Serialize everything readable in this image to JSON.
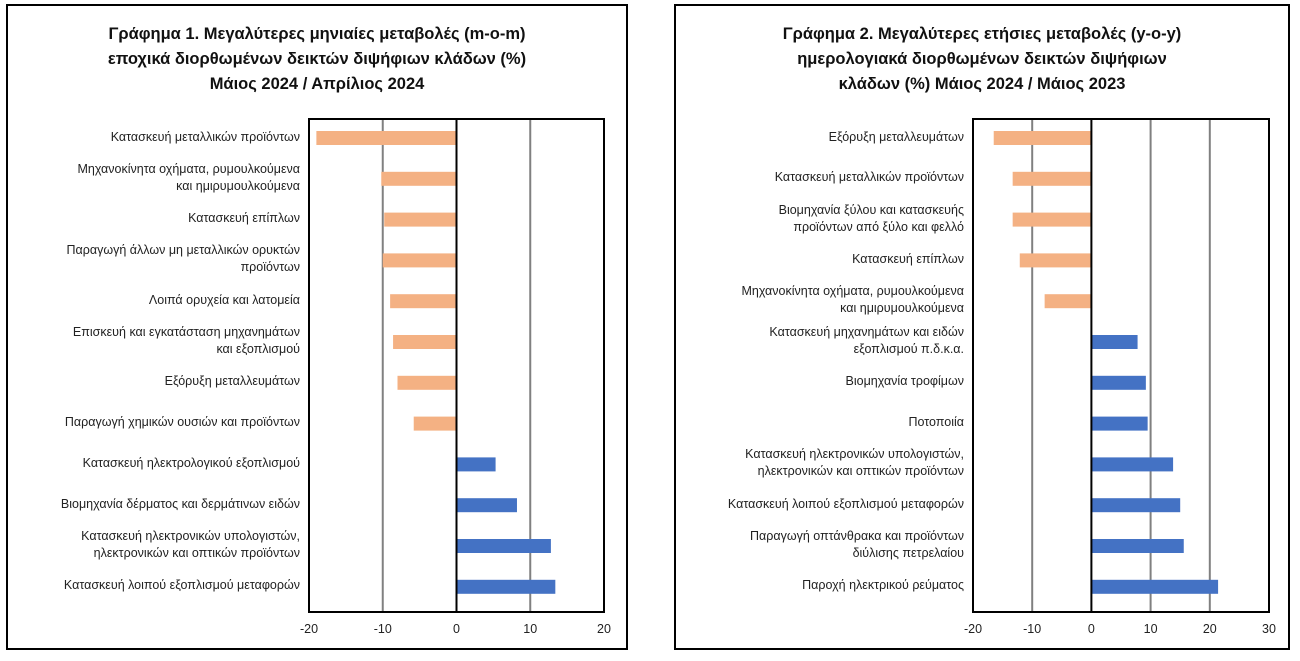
{
  "chart_data": [
    {
      "type": "bar",
      "orientation": "horizontal",
      "title": "Γράφημα 1. Μεγαλύτερες μηνιαίες μεταβολές (m-o-m)\nεποχικά διορθωμένων δεικτών διψήφιων κλάδων (%)\nΜάιος 2024 / Απρίλιος  2024",
      "categories": [
        "Κατασκευή μεταλλικών προϊόντων",
        "Μηχανοκίνητα οχήματα, ρυμουλκούμενα\nκαι ημιρυμουλκούμενα",
        "Κατασκευή επίπλων",
        "Παραγωγή άλλων μη μεταλλικών ορυκτών\nπροϊόντων",
        "Λοιπά ορυχεία και λατομεία",
        "Επισκευή και εγκατάσταση μηχανημάτων\nκαι εξοπλισμού",
        "Εξόρυξη μεταλλευμάτων",
        "Παραγωγή χημικών ουσιών και προϊόντων",
        "Κατασκευή ηλεκτρολογικού εξοπλισμού",
        "Βιομηχανία δέρματος και δερμάτινων ειδών",
        "Κατασκευή ηλεκτρονικών υπολογιστών,\nηλεκτρονικών και οπτικών προϊόντων",
        "Κατασκευή λοιπού εξοπλισμού μεταφορών"
      ],
      "values": [
        -19.0,
        -10.2,
        -9.8,
        -10.0,
        -9.0,
        -8.6,
        -8.0,
        -5.8,
        5.3,
        8.2,
        12.8,
        13.4
      ],
      "xlim": [
        -20,
        20
      ],
      "xticks": [
        "-20",
        "-10",
        "0",
        "10",
        "20"
      ],
      "tick_values": [
        -20,
        -10,
        0,
        10,
        20
      ],
      "grid": "vertical",
      "colors": {
        "negative": "#F4B183",
        "positive": "#4472C4",
        "grid": "#808080"
      }
    },
    {
      "type": "bar",
      "orientation": "horizontal",
      "title": "Γράφημα 2. Μεγαλύτερες ετήσιες μεταβολές (y-o-y)\nημερολογιακά διορθωμένων δεικτών διψήφιων\nκλάδων (%) Μάιος 2024 / Μάιος  2023",
      "categories": [
        "Εξόρυξη μεταλλευμάτων",
        "Κατασκευή μεταλλικών προϊόντων",
        "Βιομηχανία ξύλου και κατασκευής\nπροϊόντων από ξύλο και φελλό",
        "Κατασκευή επίπλων",
        "Μηχανοκίνητα οχήματα, ρυμουλκούμενα\nκαι ημιρυμουλκούμενα",
        "Κατασκευή μηχανημάτων και ειδών\nεξοπλισμού π.δ.κ.α.",
        "Βιομηχανία τροφίμων",
        "Ποτοποιία",
        "Κατασκευή ηλεκτρονικών υπολογιστών,\nηλεκτρονικών και οπτικών προϊόντων",
        "Κατασκευή λοιπού εξοπλισμού μεταφορών",
        "Παραγωγή οπτάνθρακα και προϊόντων\nδιύλισης πετρελαίου",
        "Παροχή ηλεκτρικού ρεύματος"
      ],
      "values": [
        -16.5,
        -13.3,
        -13.3,
        -12.1,
        -7.9,
        7.8,
        9.2,
        9.5,
        13.8,
        15.0,
        15.6,
        21.4
      ],
      "xlim": [
        -20,
        30
      ],
      "xticks": [
        "-20",
        "-10",
        "0",
        "10",
        "20",
        "30"
      ],
      "tick_values": [
        -20,
        -10,
        0,
        10,
        20,
        30
      ],
      "grid": "vertical",
      "colors": {
        "negative": "#F4B183",
        "positive": "#4472C4",
        "grid": "#808080"
      }
    }
  ]
}
